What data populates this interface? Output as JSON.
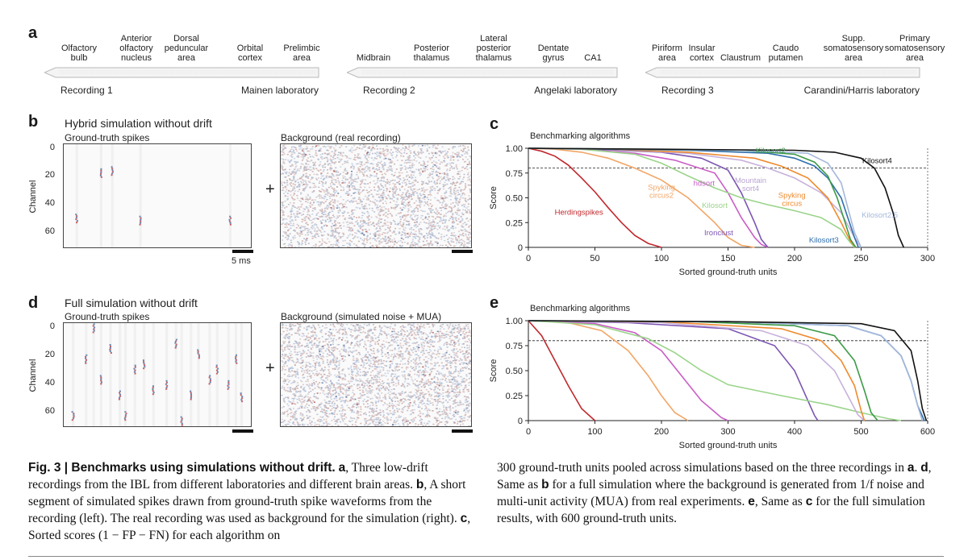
{
  "panel_a": {
    "label": "a",
    "groups": [
      {
        "recording": "Recording 1",
        "lab": "Mainen laboratory",
        "areas": [
          "Olfactory\nbulb",
          "Anterior\nolfactory\nnucleus",
          "Dorsal\npeduncular\narea",
          "Orbital\ncortex",
          "Prelimbic\narea"
        ]
      },
      {
        "recording": "Recording 2",
        "lab": "Angelaki laboratory",
        "areas": [
          "Midbrain",
          "Posterior\nthalamus",
          "Lateral\nposterior\nthalamus",
          "Dentate\ngyrus",
          "CA1"
        ]
      },
      {
        "recording": "Recording 3",
        "lab": "Carandini/Harris laboratory",
        "areas": [
          "Piriform\narea",
          "Insular\ncortex",
          "Claustrum",
          "Caudo\nputamen",
          "Supp.\nsomatosensory\narea",
          "Primary\nsomatosensory\narea"
        ]
      }
    ]
  },
  "panel_b": {
    "label": "b",
    "title": "Hybrid simulation without drift",
    "left_title": "Ground-truth spikes",
    "right_title": "Background (real recording)",
    "plus": "+",
    "scale": "5 ms",
    "ylabel": "Channel",
    "yticks": [
      "0",
      "20",
      "40",
      "60"
    ]
  },
  "panel_d": {
    "label": "d",
    "title": "Full simulation without drift",
    "left_title": "Ground-truth spikes",
    "right_title": "Background (simulated noise + MUA)",
    "plus": "+",
    "ylabel": "Channel",
    "yticks": [
      "0",
      "20",
      "40",
      "60"
    ]
  },
  "panel_c": {
    "label": "c"
  },
  "panel_e": {
    "label": "e"
  },
  "chart_data": [
    {
      "type": "line",
      "title": "Benchmarking algorithms",
      "xlabel": "Sorted ground-truth units",
      "ylabel": "Score",
      "xlim": [
        0,
        300
      ],
      "ylim": [
        0,
        1
      ],
      "xticks": [
        0,
        50,
        100,
        150,
        200,
        250,
        300
      ],
      "yticks": [
        "0",
        "0.25",
        "0.50",
        "0.75",
        "1.00"
      ],
      "threshold": 0.8,
      "series": [
        {
          "name": "Herdingspikes",
          "color": "#c0282d",
          "x": [
            0,
            10,
            20,
            30,
            40,
            50,
            60,
            70,
            80,
            90,
            100
          ],
          "y": [
            1.0,
            0.97,
            0.92,
            0.83,
            0.7,
            0.56,
            0.4,
            0.25,
            0.12,
            0.04,
            0.0
          ]
        },
        {
          "name": "Spyking\ncircus2",
          "color": "#f2a666",
          "x": [
            0,
            20,
            40,
            60,
            80,
            100,
            120,
            140,
            150,
            160,
            170
          ],
          "y": [
            1.0,
            0.99,
            0.96,
            0.9,
            0.8,
            0.68,
            0.5,
            0.25,
            0.1,
            0.02,
            0.0
          ]
        },
        {
          "name": "hdsort",
          "color": "#c95dc6",
          "x": [
            0,
            40,
            80,
            110,
            140,
            150,
            160,
            170,
            175,
            180
          ],
          "y": [
            1.0,
            0.99,
            0.95,
            0.88,
            0.75,
            0.55,
            0.3,
            0.1,
            0.03,
            0.0
          ]
        },
        {
          "name": "Ironclust",
          "color": "#7c55b3",
          "x": [
            0,
            50,
            100,
            130,
            150,
            160,
            170,
            175,
            180
          ],
          "y": [
            1.0,
            0.99,
            0.96,
            0.9,
            0.78,
            0.55,
            0.25,
            0.08,
            0.0
          ]
        },
        {
          "name": "Kilosort",
          "color": "#9ad48a",
          "x": [
            0,
            40,
            80,
            100,
            120,
            140,
            160,
            180,
            200,
            220,
            235,
            240,
            245
          ],
          "y": [
            1.0,
            0.99,
            0.94,
            0.85,
            0.72,
            0.6,
            0.5,
            0.43,
            0.37,
            0.3,
            0.18,
            0.08,
            0.0
          ]
        },
        {
          "name": "Mountain\nsort4",
          "color": "#c7b1db",
          "x": [
            0,
            60,
            120,
            160,
            180,
            200,
            220,
            235,
            245,
            250
          ],
          "y": [
            1.0,
            0.99,
            0.95,
            0.88,
            0.8,
            0.7,
            0.55,
            0.35,
            0.1,
            0.0
          ]
        },
        {
          "name": "Spyking\ncircus",
          "color": "#ef8a2e",
          "x": [
            0,
            60,
            120,
            170,
            190,
            210,
            225,
            235,
            242,
            246
          ],
          "y": [
            1.0,
            0.99,
            0.96,
            0.9,
            0.82,
            0.7,
            0.5,
            0.25,
            0.06,
            0.0
          ]
        },
        {
          "name": "Kilosort3",
          "color": "#2f6fad",
          "x": [
            0,
            60,
            120,
            180,
            200,
            215,
            225,
            235,
            240,
            245,
            248
          ],
          "y": [
            1.0,
            0.99,
            0.98,
            0.95,
            0.9,
            0.82,
            0.7,
            0.5,
            0.3,
            0.1,
            0.0
          ]
        },
        {
          "name": "Kilosort2",
          "color": "#3d9a46",
          "x": [
            0,
            80,
            160,
            200,
            215,
            225,
            232,
            238,
            242,
            246
          ],
          "y": [
            1.0,
            0.99,
            0.98,
            0.94,
            0.86,
            0.72,
            0.5,
            0.25,
            0.08,
            0.0
          ]
        },
        {
          "name": "Kilosort2.5",
          "color": "#a5b8dc",
          "x": [
            0,
            80,
            160,
            210,
            225,
            235,
            240,
            245,
            250
          ],
          "y": [
            1.0,
            0.99,
            0.98,
            0.95,
            0.85,
            0.65,
            0.4,
            0.15,
            0.0
          ]
        },
        {
          "name": "Kilosort4",
          "color": "#111111",
          "x": [
            0,
            100,
            200,
            230,
            250,
            260,
            268,
            274,
            278,
            282
          ],
          "y": [
            1.0,
            0.99,
            0.98,
            0.96,
            0.9,
            0.8,
            0.6,
            0.35,
            0.12,
            0.0
          ]
        }
      ]
    },
    {
      "type": "line",
      "title": "Benchmarking algorithms",
      "xlabel": "Sorted ground-truth units",
      "ylabel": "Score",
      "xlim": [
        0,
        600
      ],
      "ylim": [
        0,
        1
      ],
      "xticks": [
        0,
        100,
        200,
        300,
        400,
        500,
        600
      ],
      "yticks": [
        "0",
        "0.25",
        "0.50",
        "0.75",
        "1.00"
      ],
      "threshold": 0.8,
      "series": [
        {
          "name": "Herdingspikes",
          "color": "#c0282d",
          "x": [
            0,
            20,
            40,
            60,
            80,
            100
          ],
          "y": [
            1.0,
            0.85,
            0.6,
            0.35,
            0.12,
            0.0
          ]
        },
        {
          "name": "Spyking circus2",
          "color": "#f2a666",
          "x": [
            0,
            60,
            110,
            150,
            180,
            200,
            220,
            240
          ],
          "y": [
            1.0,
            0.98,
            0.9,
            0.7,
            0.45,
            0.25,
            0.08,
            0.0
          ]
        },
        {
          "name": "hdsort",
          "color": "#c95dc6",
          "x": [
            0,
            100,
            160,
            200,
            230,
            260,
            290,
            300
          ],
          "y": [
            1.0,
            0.97,
            0.88,
            0.7,
            0.45,
            0.2,
            0.03,
            0.0
          ]
        },
        {
          "name": "Ironclust",
          "color": "#7c55b3",
          "x": [
            0,
            150,
            300,
            370,
            400,
            420,
            430,
            435
          ],
          "y": [
            1.0,
            0.98,
            0.92,
            0.75,
            0.5,
            0.2,
            0.05,
            0.0
          ]
        },
        {
          "name": "Kilosort",
          "color": "#9ad48a",
          "x": [
            0,
            100,
            180,
            220,
            260,
            300,
            380,
            450,
            500,
            540,
            560
          ],
          "y": [
            1.0,
            0.96,
            0.82,
            0.68,
            0.5,
            0.36,
            0.25,
            0.16,
            0.08,
            0.02,
            0.0
          ]
        },
        {
          "name": "Mountain sort4",
          "color": "#c7b1db",
          "x": [
            0,
            200,
            350,
            420,
            460,
            480,
            495,
            505
          ],
          "y": [
            1.0,
            0.98,
            0.9,
            0.75,
            0.5,
            0.25,
            0.06,
            0.0
          ]
        },
        {
          "name": "Spyking circus",
          "color": "#ef8a2e",
          "x": [
            0,
            200,
            380,
            440,
            470,
            490,
            500,
            505
          ],
          "y": [
            1.0,
            0.99,
            0.92,
            0.8,
            0.6,
            0.35,
            0.1,
            0.0
          ]
        },
        {
          "name": "Kilosort3",
          "color": "#2f6fad",
          "x": [
            0,
            300,
            480,
            530,
            560,
            575,
            585,
            595
          ],
          "y": [
            1.0,
            0.99,
            0.95,
            0.85,
            0.65,
            0.4,
            0.15,
            0.0
          ]
        },
        {
          "name": "Kilosort2",
          "color": "#3d9a46",
          "x": [
            0,
            250,
            400,
            460,
            490,
            505,
            515,
            525
          ],
          "y": [
            1.0,
            0.99,
            0.95,
            0.85,
            0.6,
            0.3,
            0.08,
            0.0
          ]
        },
        {
          "name": "Kilosort2.5",
          "color": "#a5b8dc",
          "x": [
            0,
            300,
            480,
            530,
            560,
            575,
            585,
            592
          ],
          "y": [
            1.0,
            0.99,
            0.95,
            0.85,
            0.65,
            0.4,
            0.15,
            0.0
          ]
        },
        {
          "name": "Kilosort4",
          "color": "#111111",
          "x": [
            0,
            300,
            500,
            550,
            575,
            585,
            592,
            598
          ],
          "y": [
            1.0,
            0.99,
            0.97,
            0.9,
            0.7,
            0.4,
            0.12,
            0.0
          ]
        }
      ]
    }
  ],
  "caption": {
    "left": [
      {
        "bold": "Fig. 3 | Benchmarks using simulations without drift.",
        "text": ""
      },
      {
        "bold": "a",
        "text": ", Three low-drift recordings from the IBL from different laboratories and different brain areas. "
      },
      {
        "bold": "b",
        "text": ", A short segment of simulated spikes drawn from ground-truth spike waveforms from the recording (left). The real recording was used as background for the simulation (right). "
      },
      {
        "bold": "c",
        "text": ", Sorted scores (1 − FP − FN) for each algorithm on"
      }
    ],
    "right_parts": [
      {
        "bold": "",
        "text": "300 ground-truth units pooled across simulations based on the three recordings in "
      },
      {
        "bold": "a",
        "text": ". "
      },
      {
        "bold": "d",
        "text": ", Same as "
      },
      {
        "bold": "b",
        "text": " for a full simulation where the background is generated from 1/f noise and multi-unit activity (MUA) from real experiments. "
      },
      {
        "bold": "e",
        "text": ", Same as "
      },
      {
        "bold": "c",
        "text": " for the full simulation results, with 600 ground-truth units."
      }
    ]
  }
}
